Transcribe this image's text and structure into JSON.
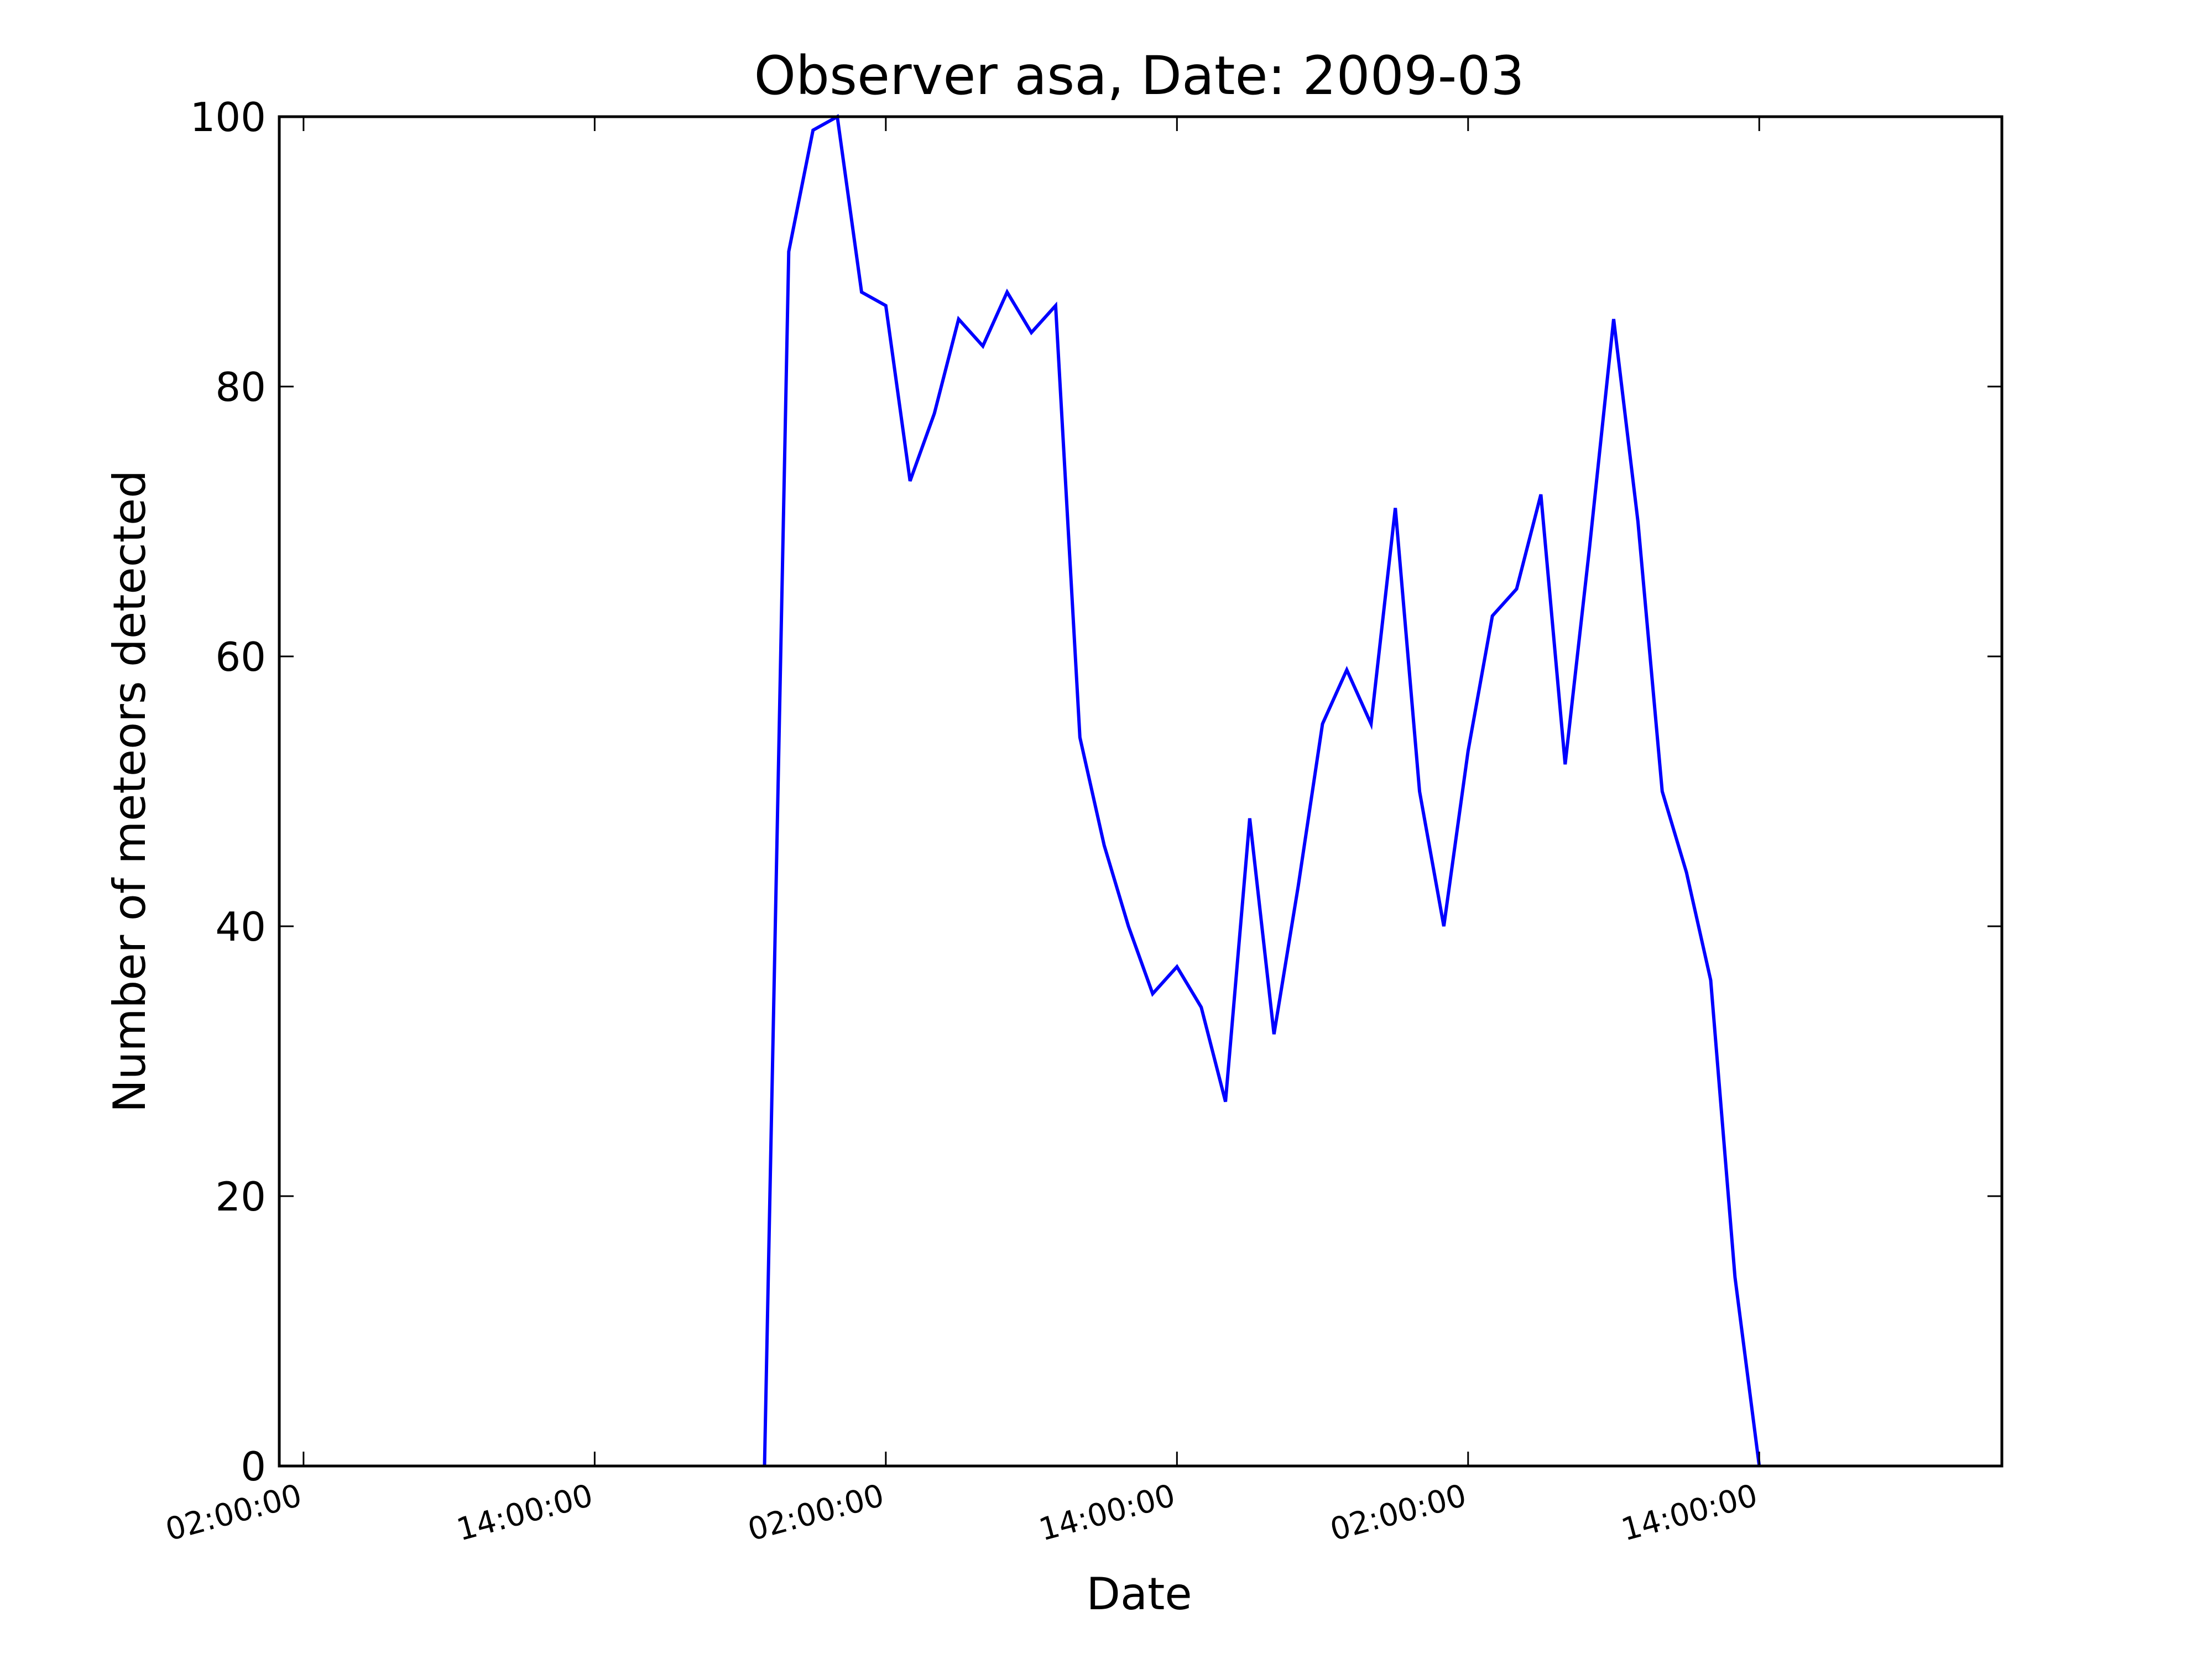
{
  "chart_data": {
    "type": "line",
    "title": "Observer asa, Date: 2009-03",
    "xlabel": "Date",
    "ylabel": "Number of meteors detected",
    "ylim": [
      0,
      100
    ],
    "yticks": [
      0,
      20,
      40,
      60,
      80,
      100
    ],
    "xlim_hours": [
      -1,
      70
    ],
    "xticks": [
      {
        "hour": 0,
        "label": "02:00:00"
      },
      {
        "hour": 12,
        "label": "14:00:00"
      },
      {
        "hour": 24,
        "label": "02:00:00"
      },
      {
        "hour": 36,
        "label": "14:00:00"
      },
      {
        "hour": 48,
        "label": "02:00:00"
      },
      {
        "hour": 60,
        "label": "14:00:00"
      }
    ],
    "grid": false,
    "line_color": "#0000ff",
    "series": [
      {
        "x_hours": [
          19,
          20,
          21,
          22,
          23,
          24,
          25,
          26,
          27,
          28,
          29,
          30,
          31,
          32,
          33,
          34,
          35,
          36,
          37,
          38,
          39,
          40,
          41,
          42,
          43,
          44,
          45,
          46,
          47,
          48,
          49,
          50,
          51,
          52,
          53,
          54,
          55,
          56,
          57,
          58,
          59,
          60
        ],
        "values": [
          0,
          90,
          99,
          100,
          87,
          86,
          73,
          78,
          85,
          83,
          87,
          84,
          86,
          54,
          46,
          40,
          35,
          37,
          34,
          27,
          48,
          32,
          43,
          55,
          59,
          55,
          71,
          50,
          40,
          53,
          63,
          65,
          72,
          52,
          68,
          85,
          70,
          50,
          44,
          36,
          14,
          0
        ]
      }
    ]
  }
}
